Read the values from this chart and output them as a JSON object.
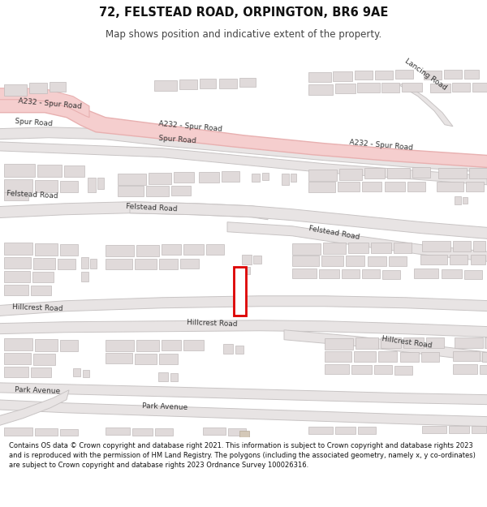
{
  "title": "72, FELSTEAD ROAD, ORPINGTON, BR6 9AE",
  "subtitle": "Map shows position and indicative extent of the property.",
  "footer": "Contains OS data © Crown copyright and database right 2021. This information is subject to Crown copyright and database rights 2023 and is reproduced with the permission of HM Land Registry. The polygons (including the associated geometry, namely x, y co-ordinates) are subject to Crown copyright and database rights 2023 Ordnance Survey 100026316.",
  "map_bg": "#ffffff",
  "road_fill": "#e8e4e4",
  "road_edge": "#c8c4c4",
  "a_road_fill": "#f5cece",
  "a_road_edge": "#e8b0b0",
  "building_fill": "#e0dada",
  "building_edge": "#c0baba",
  "plot_fill": "#ffffff",
  "plot_edge": "#cc0000",
  "label_color": "#333333",
  "title_color": "#111111"
}
